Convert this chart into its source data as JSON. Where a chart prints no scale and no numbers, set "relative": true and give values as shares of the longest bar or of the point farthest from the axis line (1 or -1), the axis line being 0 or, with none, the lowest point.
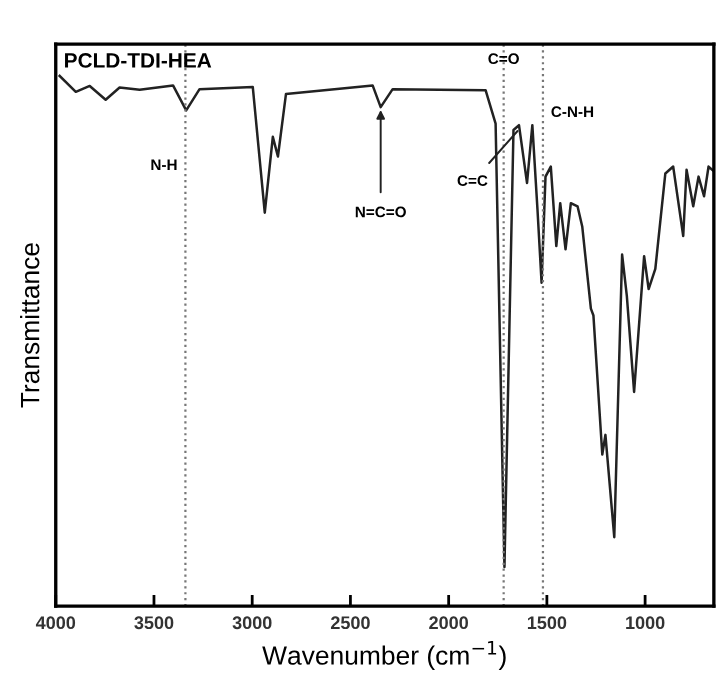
{
  "chart_data": {
    "type": "line",
    "title": "PCLD-TDI-HEA",
    "xlabel": "Wavenumber (cm$^{−1}$)",
    "ylabel": "Transmittance",
    "relative": true,
    "x": [
      3980,
      3898,
      3827,
      3746,
      3675,
      3573,
      3403,
      3336,
      3268,
      2997,
      2936,
      2895,
      2869,
      2828,
      2387,
      2346,
      2285,
      1812,
      1761,
      1716,
      1670,
      1642,
      1601,
      1574,
      1548,
      1527,
      1507,
      1480,
      1452,
      1432,
      1405,
      1378,
      1344,
      1320,
      1276,
      1263,
      1218,
      1202,
      1157,
      1117,
      1093,
      1056,
      1005,
      982,
      948,
      897,
      857,
      806,
      789,
      755,
      728,
      700,
      677,
      650
    ],
    "series": [
      {
        "color": "#222222",
        "values": [
          1.0,
          0.97,
          0.981,
          0.955,
          0.978,
          0.974,
          0.982,
          0.935,
          0.975,
          0.979,
          0.742,
          0.885,
          0.848,
          0.966,
          0.982,
          0.941,
          0.975,
          0.973,
          0.91,
          0.074,
          0.898,
          0.907,
          0.798,
          0.907,
          0.749,
          0.61,
          0.81,
          0.829,
          0.679,
          0.76,
          0.673,
          0.76,
          0.754,
          0.716,
          0.561,
          0.548,
          0.286,
          0.323,
          0.13,
          0.663,
          0.585,
          0.404,
          0.66,
          0.598,
          0.636,
          0.816,
          0.829,
          0.698,
          0.823,
          0.754,
          0.81,
          0.773,
          0.829,
          0.82
        ]
      }
    ],
    "xlim": [
      4000,
      650
    ],
    "xticks": [
      4000,
      3500,
      3000,
      2500,
      2000,
      1500,
      1000
    ],
    "ref_lines": [
      {
        "axis": "x",
        "value": 3340,
        "label": "N-H",
        "line_style": "dotted",
        "color": "#777777"
      },
      {
        "axis": "x",
        "value": 1720,
        "label": "C=O",
        "line_style": "dotted",
        "color": "#777777"
      },
      {
        "axis": "x",
        "value": 1520,
        "label": "C-N-H",
        "line_style": "dotted",
        "color": "#777777"
      }
    ],
    "annotations": [
      {
        "text": "N=C=O",
        "x": 2346,
        "y": 0.941
      },
      {
        "text": "C=C",
        "x": 1640,
        "y": 0.9
      }
    ],
    "grid": false,
    "legend": false
  }
}
